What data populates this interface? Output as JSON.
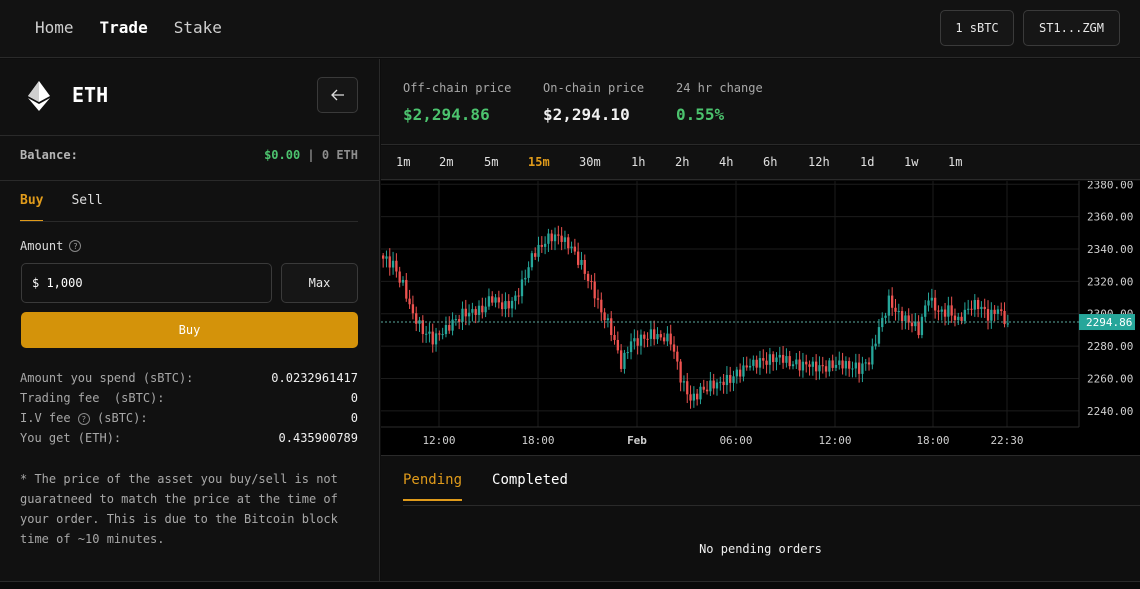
{
  "nav": {
    "items": [
      "Home",
      "Trade",
      "Stake"
    ],
    "active_index": 1
  },
  "header": {
    "balance_button": "1 sBTC",
    "wallet_button": "ST1...ZGM"
  },
  "asset": {
    "symbol": "ETH",
    "back_icon": "arrow-left-icon"
  },
  "balance": {
    "label": "Balance:",
    "usd": "$0.00",
    "separator": " | ",
    "token": "0 ETH"
  },
  "trade_tabs": {
    "buy": "Buy",
    "sell": "Sell",
    "active": "Buy"
  },
  "amount": {
    "label": "Amount",
    "value": "$ 1,000",
    "max_label": "Max",
    "submit_label": "Buy"
  },
  "summary": [
    {
      "key": "Amount you spend (sBTC):",
      "value": "0.0232961417"
    },
    {
      "key": "Trading fee  (sBTC):",
      "value": "0"
    },
    {
      "key": "I.V fee",
      "key_suffix": " (sBTC):",
      "value": "0"
    },
    {
      "key": "You get (ETH):",
      "value": "0.435900789"
    }
  ],
  "note": "* The price of the asset you buy/sell is not guaratneed to match the price at the time of your order. This is due to the Bitcoin block time of ~10 minutes.",
  "prices": {
    "offchain_label": "Off-chain price",
    "offchain_value": "$2,294.86",
    "onchain_label": "On-chain price",
    "onchain_value": "$2,294.10",
    "change_label": "24 hr change",
    "change_value": "0.55%",
    "colors": {
      "up": "#4cc36e",
      "neutral": "#f0f0f0",
      "accent": "#e09b1b"
    }
  },
  "timeframes": {
    "items": [
      "1m",
      "2m",
      "5m",
      "15m",
      "30m",
      "1h",
      "2h",
      "4h",
      "6h",
      "12h",
      "1d",
      "1w",
      "1m"
    ],
    "active_index": 3
  },
  "chart_data": {
    "type": "candlestick",
    "y_ticks": [
      "2380.00",
      "2360.00",
      "2340.00",
      "2320.00",
      "2300.00",
      "2280.00",
      "2260.00",
      "2240.00"
    ],
    "x_ticks": [
      "12:00",
      "18:00",
      "Feb",
      "06:00",
      "12:00",
      "18:00",
      "22:30"
    ],
    "ylim": [
      2230,
      2382
    ],
    "last_price": 2294.86,
    "last_price_label": "2294.86",
    "up_color": "#26a69a",
    "down_color": "#ef5350",
    "closes": [
      2334,
      2330,
      2318,
      2300,
      2290,
      2284,
      2288,
      2294,
      2300,
      2302,
      2303,
      2310,
      2304,
      2306,
      2318,
      2336,
      2343,
      2348,
      2346,
      2340,
      2330,
      2318,
      2302,
      2290,
      2268,
      2282,
      2284,
      2288,
      2286,
      2284,
      2260,
      2246,
      2252,
      2256,
      2258,
      2260,
      2264,
      2268,
      2270,
      2272,
      2274,
      2270,
      2268,
      2268,
      2266,
      2268,
      2270,
      2268,
      2266,
      2270,
      2290,
      2308,
      2300,
      2296,
      2290,
      2310,
      2300,
      2302,
      2296,
      2304,
      2306,
      2298,
      2302,
      2294
    ]
  },
  "orders": {
    "tabs": [
      "Pending",
      "Completed"
    ],
    "active": "Pending",
    "empty_message": "No pending orders"
  }
}
